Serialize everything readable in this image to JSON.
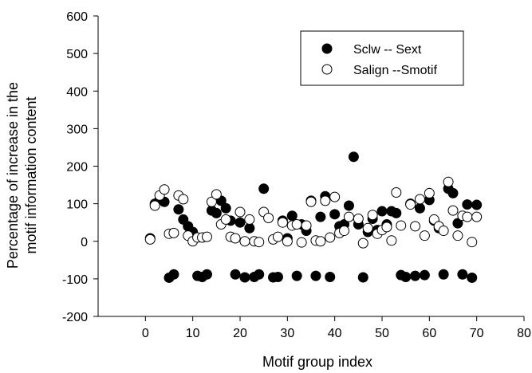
{
  "chart_data": {
    "type": "scatter",
    "title": "",
    "xlabel": "Motif group index",
    "ylabel_lines": [
      "Percentage of increase in the",
      "motif information content"
    ],
    "xlim": [
      -10,
      80
    ],
    "ylim": [
      -200,
      600
    ],
    "xticks": [
      0,
      10,
      20,
      30,
      40,
      50,
      60,
      70,
      80
    ],
    "yticks": [
      -200,
      -100,
      0,
      100,
      200,
      300,
      400,
      500,
      600
    ],
    "grid": false,
    "legend_position": "top-right",
    "series": [
      {
        "name": "Sclw -- Sext",
        "marker": "filled-circle",
        "color": "#000000",
        "points": [
          [
            1,
            8
          ],
          [
            2,
            100
          ],
          [
            3,
            110
          ],
          [
            4,
            105
          ],
          [
            5,
            -97
          ],
          [
            6,
            -88
          ],
          [
            7,
            85
          ],
          [
            8,
            58
          ],
          [
            9,
            40
          ],
          [
            10,
            25
          ],
          [
            11,
            -92
          ],
          [
            12,
            -95
          ],
          [
            13,
            -88
          ],
          [
            14,
            82
          ],
          [
            15,
            75
          ],
          [
            16,
            108
          ],
          [
            17,
            88
          ],
          [
            18,
            55
          ],
          [
            19,
            -88
          ],
          [
            20,
            50
          ],
          [
            21,
            -96
          ],
          [
            22,
            35
          ],
          [
            23,
            -95
          ],
          [
            24,
            -88
          ],
          [
            25,
            140
          ],
          [
            27,
            -96
          ],
          [
            28,
            -95
          ],
          [
            29,
            55
          ],
          [
            30,
            8
          ],
          [
            31,
            68
          ],
          [
            32,
            -92
          ],
          [
            33,
            45
          ],
          [
            34,
            28
          ],
          [
            35,
            108
          ],
          [
            36,
            -92
          ],
          [
            37,
            65
          ],
          [
            38,
            120
          ],
          [
            39,
            -95
          ],
          [
            40,
            72
          ],
          [
            41,
            40
          ],
          [
            42,
            45
          ],
          [
            43,
            95
          ],
          [
            44,
            225
          ],
          [
            45,
            45
          ],
          [
            46,
            -96
          ],
          [
            47,
            25
          ],
          [
            48,
            60
          ],
          [
            49,
            30
          ],
          [
            50,
            80
          ],
          [
            51,
            45
          ],
          [
            52,
            80
          ],
          [
            53,
            75
          ],
          [
            54,
            -90
          ],
          [
            55,
            -95
          ],
          [
            56,
            100
          ],
          [
            57,
            -92
          ],
          [
            58,
            88
          ],
          [
            59,
            -90
          ],
          [
            60,
            110
          ],
          [
            61,
            55
          ],
          [
            62,
            35
          ],
          [
            63,
            -88
          ],
          [
            64,
            140
          ],
          [
            65,
            128
          ],
          [
            66,
            48
          ],
          [
            67,
            -88
          ],
          [
            68,
            98
          ],
          [
            69,
            -97
          ],
          [
            70,
            97
          ]
        ]
      },
      {
        "name": "Salign --Smotif",
        "marker": "open-circle",
        "color": "#000000",
        "points": [
          [
            1,
            5
          ],
          [
            2,
            95
          ],
          [
            3,
            122
          ],
          [
            4,
            138
          ],
          [
            5,
            20
          ],
          [
            6,
            22
          ],
          [
            7,
            122
          ],
          [
            8,
            112
          ],
          [
            9,
            15
          ],
          [
            10,
            0
          ],
          [
            11,
            10
          ],
          [
            12,
            10
          ],
          [
            13,
            12
          ],
          [
            14,
            105
          ],
          [
            15,
            125
          ],
          [
            16,
            45
          ],
          [
            17,
            58
          ],
          [
            18,
            12
          ],
          [
            19,
            8
          ],
          [
            20,
            78
          ],
          [
            21,
            0
          ],
          [
            22,
            58
          ],
          [
            23,
            0
          ],
          [
            24,
            -2
          ],
          [
            25,
            78
          ],
          [
            26,
            62
          ],
          [
            27,
            5
          ],
          [
            28,
            12
          ],
          [
            29,
            50
          ],
          [
            30,
            0
          ],
          [
            31,
            42
          ],
          [
            32,
            45
          ],
          [
            33,
            -3
          ],
          [
            34,
            42
          ],
          [
            35,
            105
          ],
          [
            36,
            2
          ],
          [
            37,
            0
          ],
          [
            38,
            108
          ],
          [
            39,
            10
          ],
          [
            40,
            118
          ],
          [
            41,
            22
          ],
          [
            42,
            28
          ],
          [
            43,
            65
          ],
          [
            45,
            60
          ],
          [
            46,
            -5
          ],
          [
            47,
            35
          ],
          [
            48,
            70
          ],
          [
            49,
            20
          ],
          [
            50,
            30
          ],
          [
            51,
            38
          ],
          [
            52,
            2
          ],
          [
            53,
            130
          ],
          [
            54,
            42
          ],
          [
            56,
            98
          ],
          [
            57,
            40
          ],
          [
            58,
            112
          ],
          [
            59,
            15
          ],
          [
            60,
            128
          ],
          [
            61,
            58
          ],
          [
            62,
            40
          ],
          [
            63,
            28
          ],
          [
            64,
            158
          ],
          [
            65,
            82
          ],
          [
            66,
            15
          ],
          [
            67,
            68
          ],
          [
            68,
            65
          ],
          [
            69,
            -2
          ],
          [
            70,
            65
          ]
        ]
      }
    ]
  }
}
